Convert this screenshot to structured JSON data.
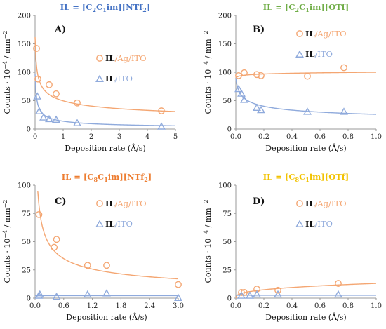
{
  "colors": {
    "orange": "#F4A672",
    "blue": "#8FAADC",
    "title_blue": "#4472C4",
    "title_green": "#70AD47",
    "title_orange": "#ED7D31",
    "title_yellow": "#F2C200",
    "axis": "#9a9a9a"
  },
  "chart_data": [
    {
      "type": "scatter",
      "panel_label": "A)",
      "title": {
        "pre": "IL = [C",
        "s1": "2",
        "mid": "C",
        "s2": "1",
        "post": "im][NTf",
        "s3": "2",
        "end": "]",
        "color": "title_blue"
      },
      "xlabel": "Deposition rate (Å/s)",
      "ylabel": {
        "pre": "Counts · 10",
        "sup": "−4",
        "post": " / mm",
        "sup2": "−2"
      },
      "xlim": [
        0,
        5
      ],
      "ylim": [
        0,
        200
      ],
      "xticks": [
        0,
        1,
        2,
        3,
        4,
        5
      ],
      "xtick_labels": [
        "0",
        "1",
        "2",
        "3",
        "4",
        "5"
      ],
      "yticks": [
        0,
        50,
        100,
        150,
        200
      ],
      "ytick_labels": [
        "0",
        "50",
        "100",
        "150",
        "200"
      ],
      "legend": [
        {
          "bold": "IL",
          "rest": "/Ag/ITO",
          "color": "orange",
          "marker": "circle"
        },
        {
          "bold": "IL",
          "rest": "/ITO",
          "color": "blue",
          "marker": "triangle"
        }
      ],
      "series": [
        {
          "color": "orange",
          "marker": "circle",
          "points": [
            [
              0.05,
              142
            ],
            [
              0.1,
              88
            ],
            [
              0.5,
              78
            ],
            [
              0.75,
              62
            ],
            [
              1.5,
              46
            ],
            [
              4.5,
              32
            ]
          ],
          "fit": {
            "a": 50,
            "b": -0.3,
            "x0": 0.02
          }
        },
        {
          "color": "blue",
          "marker": "triangle",
          "points": [
            [
              0.08,
              57
            ],
            [
              0.15,
              31
            ],
            [
              0.3,
              20
            ],
            [
              0.5,
              17
            ],
            [
              0.75,
              16
            ],
            [
              1.5,
              10
            ],
            [
              4.5,
              4
            ]
          ],
          "fit": {
            "a": 14,
            "b": -0.55,
            "x0": 0.03
          }
        }
      ]
    },
    {
      "type": "scatter",
      "panel_label": "B)",
      "title": {
        "pre": "IL = [C",
        "s1": "2",
        "mid": "C",
        "s2": "1",
        "post": "im][OTf]",
        "s3": "",
        "end": "",
        "color": "title_green"
      },
      "xlabel": "Deposition rate (Å/s)",
      "ylabel": {
        "pre": "Counts · 10",
        "sup": "−4",
        "post": " / mm",
        "sup2": "−2"
      },
      "xlim": [
        0,
        1
      ],
      "ylim": [
        0,
        200
      ],
      "xticks": [
        0,
        0.2,
        0.4,
        0.6,
        0.8,
        1.0
      ],
      "xtick_labels": [
        "0.0",
        "0.2",
        "0.4",
        "0.6",
        "0.8",
        "1.0"
      ],
      "yticks": [
        0,
        50,
        100,
        150,
        200
      ],
      "ytick_labels": [
        "0",
        "50",
        "100",
        "150",
        "200"
      ],
      "legend": [
        {
          "bold": "IL",
          "rest": "/Ag/ITO",
          "color": "orange",
          "marker": "circle"
        },
        {
          "bold": "IL",
          "rest": "/ITO",
          "color": "blue",
          "marker": "triangle"
        }
      ],
      "series": [
        {
          "color": "orange",
          "marker": "circle",
          "points": [
            [
              0.02,
              94
            ],
            [
              0.06,
              99
            ],
            [
              0.15,
              96
            ],
            [
              0.18,
              94
            ],
            [
              0.51,
              93
            ],
            [
              0.77,
              108
            ]
          ],
          "fit": {
            "a": 100,
            "b": 0.02,
            "x0": 0.005
          }
        },
        {
          "color": "blue",
          "marker": "triangle",
          "points": [
            [
              0.02,
              70
            ],
            [
              0.04,
              62
            ],
            [
              0.06,
              51
            ],
            [
              0.15,
              37
            ],
            [
              0.18,
              33
            ],
            [
              0.51,
              30
            ],
            [
              0.77,
              30
            ]
          ],
          "fit": {
            "a": 26,
            "b": -0.28,
            "x0": 0.012
          }
        }
      ]
    },
    {
      "type": "scatter",
      "panel_label": "C)",
      "title": {
        "pre": "IL = [C",
        "s1": "8",
        "mid": "C",
        "s2": "1",
        "post": "im][NTf",
        "s3": "2",
        "end": "]",
        "color": "title_orange"
      },
      "xlabel": "Deposition rate (Å/s)",
      "ylabel": {
        "pre": "Counts · 10",
        "sup": "−4",
        "post": " / mm",
        "sup2": "−2"
      },
      "xlim": [
        0,
        3
      ],
      "ylim": [
        0,
        100
      ],
      "xticks": [
        0,
        0.6,
        1.2,
        1.8,
        2.4,
        3.0
      ],
      "xtick_labels": [
        "0.0",
        "0.6",
        "1.2",
        "1.8",
        "2.4",
        "3.0"
      ],
      "yticks": [
        0,
        25,
        50,
        75,
        100
      ],
      "ytick_labels": [
        "0",
        "25",
        "50",
        "75",
        "100"
      ],
      "legend": [
        {
          "bold": "IL",
          "rest": "/Ag/ITO",
          "color": "orange",
          "marker": "circle"
        },
        {
          "bold": "IL",
          "rest": "/ITO",
          "color": "blue",
          "marker": "triangle"
        }
      ],
      "series": [
        {
          "color": "orange",
          "marker": "circle",
          "points": [
            [
              0.08,
              74
            ],
            [
              0.4,
              45
            ],
            [
              0.45,
              52
            ],
            [
              1.1,
              29
            ],
            [
              1.5,
              29
            ],
            [
              3.0,
              12
            ]
          ],
          "fit": {
            "a": 28,
            "b": -0.45,
            "x0": 0.01
          }
        },
        {
          "color": "blue",
          "marker": "triangle",
          "points": [
            [
              0.08,
              2
            ],
            [
              0.1,
              3
            ],
            [
              0.45,
              1
            ],
            [
              1.1,
              3
            ],
            [
              1.5,
              4
            ],
            [
              3.0,
              0
            ]
          ],
          "fit": {
            "a": 2.2,
            "b": 0.0,
            "x0": 0.0
          }
        }
      ]
    },
    {
      "type": "scatter",
      "panel_label": "D)",
      "title": {
        "pre": "IL = [C",
        "s1": "8",
        "mid": "C",
        "s2": "1",
        "post": "im][OTf]",
        "s3": "",
        "end": "",
        "color": "title_yellow"
      },
      "xlabel": "Deposition rate (Å/s)",
      "ylabel": {
        "pre": "Counts · 10",
        "sup": "−4",
        "post": " / mm",
        "sup2": "−2"
      },
      "xlim": [
        0,
        1
      ],
      "ylim": [
        0,
        100
      ],
      "xticks": [
        0,
        0.2,
        0.4,
        0.6,
        0.8,
        1.0
      ],
      "xtick_labels": [
        "0.0",
        "0.2",
        "0.4",
        "0.6",
        "0.8",
        "1.0"
      ],
      "yticks": [
        0,
        25,
        50,
        75,
        100
      ],
      "ytick_labels": [
        "0",
        "25",
        "50",
        "75",
        "100"
      ],
      "legend": [
        {
          "bold": "IL",
          "rest": "/Ag/ITO",
          "color": "orange",
          "marker": "circle"
        },
        {
          "bold": "IL",
          "rest": "/ITO",
          "color": "blue",
          "marker": "triangle"
        }
      ],
      "series": [
        {
          "color": "orange",
          "marker": "circle",
          "points": [
            [
              0.04,
              5
            ],
            [
              0.06,
              5
            ],
            [
              0.15,
              8
            ],
            [
              0.3,
              7
            ],
            [
              0.73,
              13
            ]
          ],
          "fit": {
            "a": 13,
            "b": 0.35,
            "x0": 0.0
          }
        },
        {
          "color": "blue",
          "marker": "triangle",
          "points": [
            [
              0.04,
              2
            ],
            [
              0.1,
              2
            ],
            [
              0.15,
              3
            ],
            [
              0.3,
              3
            ],
            [
              0.73,
              3
            ]
          ],
          "fit": {
            "a": 2.5,
            "b": 0.0,
            "x0": 0.0
          }
        }
      ]
    }
  ]
}
